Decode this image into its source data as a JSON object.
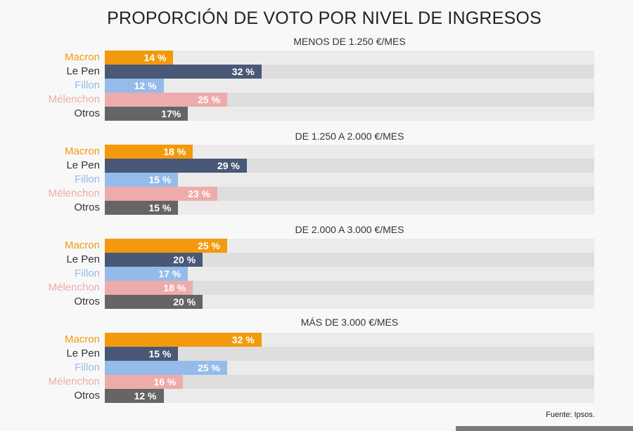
{
  "chart_data": {
    "type": "bar",
    "orientation": "horizontal",
    "title": "PROPORCIÓN DE VOTO POR NIVEL DE INGRESOS",
    "xlim": [
      0,
      100
    ],
    "grid": false,
    "categories": [
      "Macron",
      "Le Pen",
      "Fillon",
      "Mélenchon",
      "Otros"
    ],
    "colors": {
      "Macron": "#f39a0c",
      "Le Pen": "#4a5877",
      "Fillon": "#94bbe9",
      "Mélenchon": "#eeabab",
      "Otros": "#656565"
    },
    "label_colors": {
      "Macron": "#f39a0c",
      "Le Pen": "#333333",
      "Fillon": "#94bbe9",
      "Mélenchon": "#eeabab",
      "Otros": "#333333"
    },
    "groups": [
      {
        "title": "MENOS DE 1.250 €/MES",
        "values": [
          14,
          32,
          12,
          25,
          17
        ],
        "labels": [
          "14 %",
          "32 %",
          "12 %",
          "25 %",
          "17%"
        ]
      },
      {
        "title": "DE 1.250 A 2.000 €/MES",
        "values": [
          18,
          29,
          15,
          23,
          15
        ],
        "labels": [
          "18 %",
          "29 %",
          "15 %",
          "23 %",
          "15 %"
        ]
      },
      {
        "title": "DE 2.000 A 3.000 €/MES",
        "values": [
          25,
          20,
          17,
          18,
          20
        ],
        "labels": [
          "25 %",
          "20 %",
          "17 %",
          "18 %",
          "20 %"
        ]
      },
      {
        "title": "MÁS DE 3.000 €/MES",
        "values": [
          32,
          15,
          25,
          16,
          12
        ],
        "labels": [
          "32 %",
          "15 %",
          "25 %",
          "16 %",
          "12 %"
        ]
      }
    ],
    "source": "Fuente: Ipsos."
  }
}
